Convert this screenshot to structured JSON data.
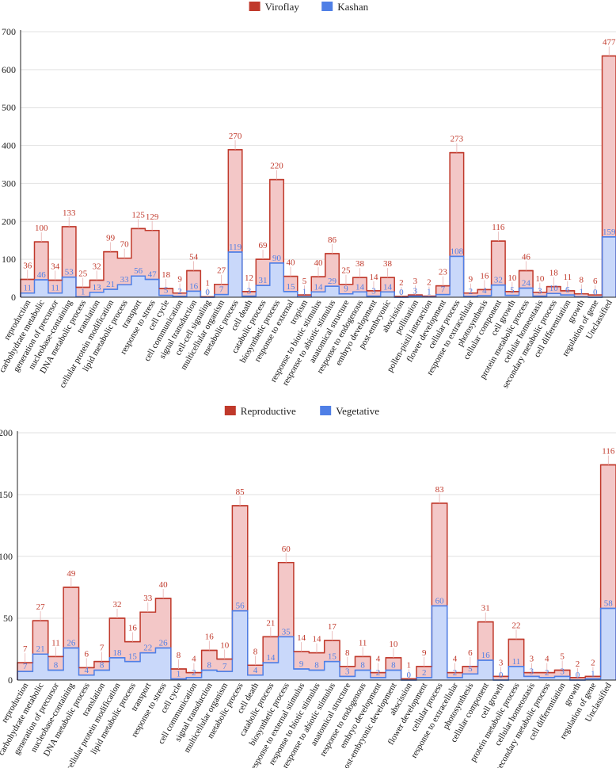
{
  "colors": {
    "red_line": "#c0392b",
    "red_fill": "#f3c7c7",
    "blue_line": "#4f7fe6",
    "blue_fill": "#c9d8fa",
    "red_label": "#c0392b",
    "blue_label": "#4f7fe6",
    "axis": "#222222",
    "grid": "#e2e2e2"
  },
  "categories": [
    "reproduction",
    "carbohydrate metabolic",
    "generation of precursor",
    "nucleobase-containing",
    "DNA metabolic process",
    "translation",
    "cellular protein modification",
    "lipid metabolic process",
    "transport",
    "response to stress",
    "cell cycle",
    "cell communication",
    "signal transduction",
    "cell-cell signaling",
    "multicellular organism",
    "metabolic process",
    "cell death",
    "catabolic process",
    "biosynthetic process",
    "response to external",
    "tropism",
    "response to biotic stimulus",
    "response to abiotic stimulus",
    "anatomical structure",
    "response to endogenous",
    "embryo development",
    "post-embryonic",
    "abscission",
    "pollination",
    "pollen-pistil interaction",
    "flower development",
    "cellular process",
    "response to extracellular",
    "photosynthesis",
    "cellular component",
    "cell growth",
    "protein metabolic process",
    "cellular homeostasis",
    "secondary metabolic process",
    "cell differentiation",
    "growth",
    "regulation of gene",
    "Unclassified"
  ],
  "categories_bottom": [
    "reproduction",
    "carbohydrate metabolic",
    "generation of precursor",
    "nucleobase-containing",
    "DNA metabolic process",
    "translation",
    "cellular protein modification",
    "lipid metabolic process",
    "transport",
    "response to stress",
    "cell cycle",
    "cell communication",
    "signal transduction",
    "multicellular organism",
    "metabolic process",
    "cell death",
    "catabolic process",
    "biosynthetic process",
    "response to external stimulus",
    "response to biotic stimulus",
    "response to abiotic stimulus",
    "anatomical structure",
    "response to endogenous",
    "embryo development",
    "post-embryonic development",
    "abscission",
    "flower development",
    "cellular process",
    "response to extracellular",
    "photosynthesis",
    "cellular component",
    "cell growth",
    "protein metabolic process",
    "cellular homeostasis",
    "secondary metabolic process",
    "cell differentiation",
    "growth",
    "regulation of gene",
    "Unclassified"
  ],
  "chart_data": [
    {
      "type": "area",
      "stacked": true,
      "legend": [
        "Viroflay",
        "Kashan"
      ],
      "legend_position": "top-center",
      "ylim": [
        0,
        700
      ],
      "yticks": [
        0,
        100,
        200,
        300,
        400,
        500,
        600,
        700
      ],
      "series": [
        {
          "name": "Viroflay",
          "values": [
            36,
            100,
            34,
            133,
            25,
            32,
            99,
            70,
            125,
            129,
            18,
            9,
            54,
            1,
            27,
            270,
            12,
            69,
            220,
            40,
            5,
            40,
            86,
            25,
            38,
            14,
            38,
            2,
            3,
            2,
            23,
            273,
            9,
            16,
            116,
            10,
            46,
            10,
            18,
            11,
            8,
            6,
            477
          ]
        },
        {
          "name": "Kashan",
          "values": [
            11,
            46,
            11,
            53,
            1,
            13,
            21,
            33,
            56,
            47,
            5,
            2,
            16,
            0,
            7,
            119,
            3,
            31,
            90,
            15,
            1,
            14,
            29,
            9,
            14,
            3,
            14,
            0,
            3,
            1,
            7,
            108,
            2,
            4,
            32,
            5,
            24,
            3,
            10,
            6,
            1,
            0,
            159
          ]
        }
      ]
    },
    {
      "type": "area",
      "stacked": true,
      "legend": [
        "Reproductive",
        "Vegetative"
      ],
      "legend_position": "top-center",
      "ylim": [
        0,
        200
      ],
      "yticks": [
        0,
        50,
        100,
        150,
        200
      ],
      "series": [
        {
          "name": "Reproductive",
          "values": [
            7,
            27,
            11,
            49,
            6,
            7,
            32,
            16,
            33,
            40,
            8,
            4,
            16,
            10,
            85,
            8,
            21,
            60,
            14,
            14,
            17,
            8,
            11,
            4,
            10,
            1,
            9,
            83,
            4,
            6,
            31,
            3,
            22,
            3,
            4,
            5,
            2,
            2,
            116
          ]
        },
        {
          "name": "Vegetative",
          "values": [
            7,
            21,
            8,
            26,
            4,
            8,
            18,
            15,
            22,
            26,
            1,
            2,
            8,
            7,
            56,
            4,
            14,
            35,
            9,
            8,
            15,
            3,
            8,
            2,
            8,
            0,
            2,
            60,
            2,
            5,
            16,
            0,
            11,
            3,
            2,
            3,
            0,
            1,
            58
          ]
        }
      ]
    }
  ]
}
